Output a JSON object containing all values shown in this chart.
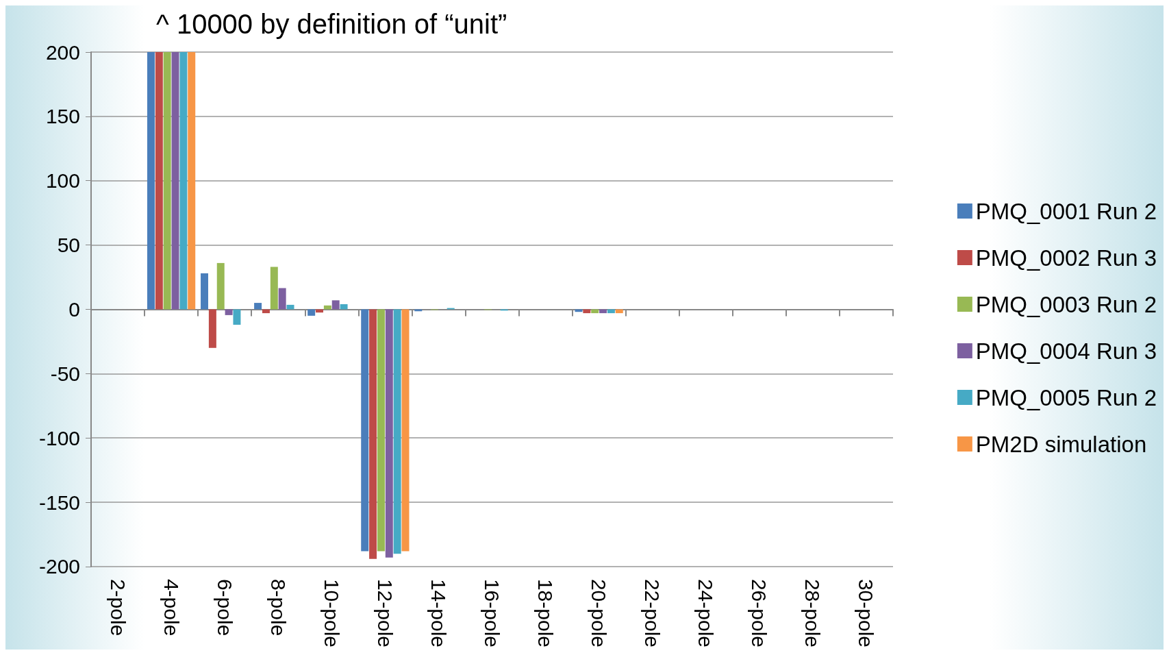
{
  "chart_data": {
    "type": "bar",
    "title": "^ 10000 by definition of “unit”",
    "categories": [
      "2-pole",
      "4-pole",
      "6-pole",
      "8-pole",
      "10-pole",
      "12-pole",
      "14-pole",
      "16-pole",
      "18-pole",
      "20-pole",
      "22-pole",
      "24-pole",
      "26-pole",
      "28-pole",
      "30-pole"
    ],
    "series": [
      {
        "name": "PMQ_0001 Run 2",
        "color": "#4a7ebb",
        "values": [
          0,
          200,
          28,
          5,
          -5,
          -188,
          -1.5,
          0,
          0,
          -2,
          0,
          0,
          0,
          0,
          0
        ]
      },
      {
        "name": "PMQ_0002 Run 3",
        "color": "#be4b48",
        "values": [
          0,
          200,
          -30,
          -3,
          -2.5,
          -194,
          0,
          0,
          0,
          -3,
          0,
          0,
          0,
          0,
          0
        ]
      },
      {
        "name": "PMQ_0003 Run 2",
        "color": "#98b954",
        "values": [
          0,
          200,
          36,
          33,
          3,
          -188,
          -0.5,
          -0.5,
          0,
          -3,
          0,
          0,
          0,
          0,
          0
        ]
      },
      {
        "name": "PMQ_0004 Run 3",
        "color": "#7d60a0",
        "values": [
          0,
          200,
          -4.5,
          16.5,
          7,
          -193,
          0,
          0,
          0,
          -3,
          0,
          0,
          0,
          0,
          0
        ]
      },
      {
        "name": "PMQ_0005 Run 2",
        "color": "#46aac5",
        "values": [
          0,
          200,
          -12,
          3.5,
          4,
          -190,
          1,
          -1,
          0,
          -3,
          0,
          0,
          0,
          0,
          0
        ]
      },
      {
        "name": "PM2D simulation",
        "color": "#f79646",
        "values": [
          0,
          200,
          0,
          0,
          0,
          -188,
          0,
          0,
          0,
          -3,
          0,
          0,
          0,
          0,
          0
        ]
      }
    ],
    "ylim": [
      -200,
      200
    ],
    "yticks": [
      -200,
      -150,
      -100,
      -50,
      0,
      50,
      100,
      150,
      200
    ],
    "grid": "y",
    "legend": "right"
  }
}
